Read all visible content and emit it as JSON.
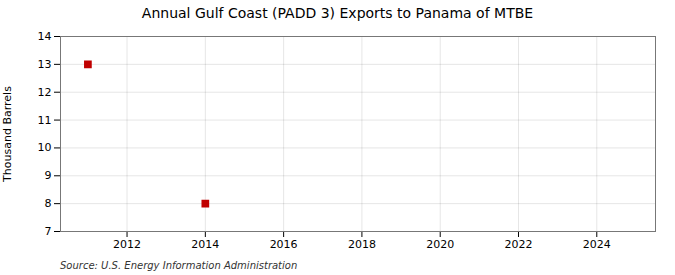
{
  "chart_data": {
    "type": "scatter",
    "title": "Annual Gulf Coast (PADD 3) Exports to Panama of MTBE",
    "ylabel": "Thousand Barrels",
    "source": "Source: U.S. Energy Information Administration",
    "x": [
      2011,
      2014
    ],
    "values": [
      13,
      8
    ],
    "color": "#c00000",
    "marker": "square",
    "xlim": [
      2010.3,
      2025.5
    ],
    "xticks": [
      2012,
      2014,
      2016,
      2018,
      2020,
      2022,
      2024
    ],
    "ylim": [
      7,
      14
    ],
    "yticks": [
      7,
      8,
      9,
      10,
      11,
      12,
      13,
      14
    ],
    "grid": true
  }
}
